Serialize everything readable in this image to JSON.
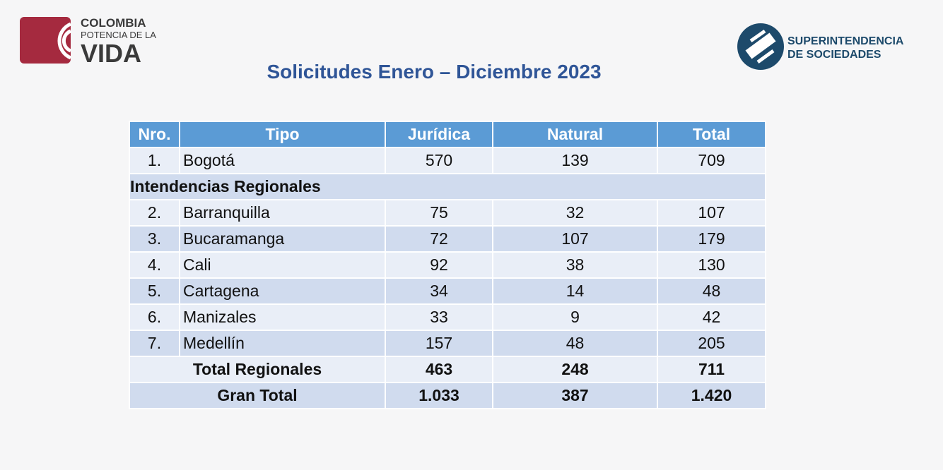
{
  "logo_left": {
    "line1": "COLOMBIA",
    "line2": "POTENCIA DE LA",
    "line3": "VIDA"
  },
  "logo_right": {
    "line1": "SUPERINTENDENCIA",
    "line2": "DE SOCIEDADES"
  },
  "title": "Solicitudes Enero – Diciembre 2023",
  "table": {
    "header": [
      "Nro.",
      "Tipo",
      "Jurídica",
      "Natural",
      "Total"
    ],
    "rows": [
      [
        "1.",
        "Bogotá",
        570,
        139,
        709
      ],
      [
        "Intendencias Regionales"
      ],
      [
        "2.",
        "Barranquilla",
        75,
        32,
        107
      ],
      [
        "3.",
        "Bucaramanga",
        72,
        107,
        179
      ],
      [
        "4.",
        "Cali",
        92,
        38,
        130
      ],
      [
        "5.",
        "Cartagena",
        34,
        14,
        48
      ],
      [
        "6.",
        "Manizales",
        33,
        9,
        42
      ],
      [
        "7.",
        "Medellín",
        157,
        48,
        205
      ],
      [
        "Total Regionales",
        463,
        248,
        711
      ],
      [
        "Gran Total",
        "1.033",
        387,
        "1.420"
      ]
    ]
  }
}
